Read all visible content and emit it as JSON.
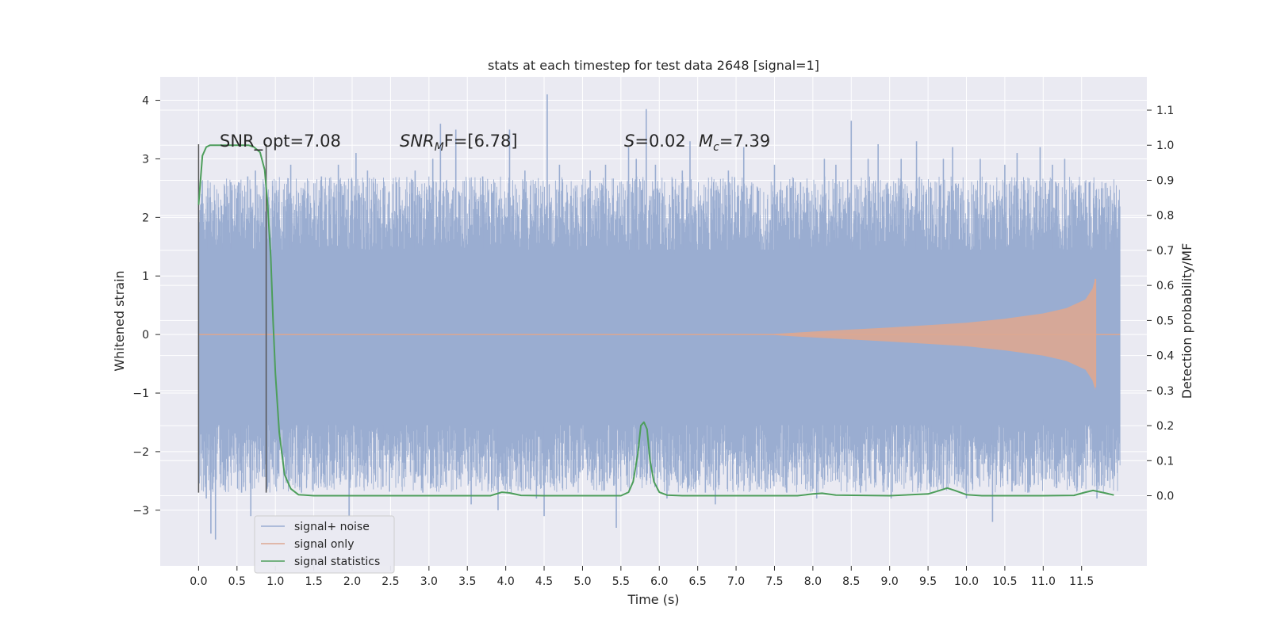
{
  "chart_data": {
    "type": "line",
    "title": "stats at each timestep for test data 2648 [signal=1]",
    "xlabel": "Time (s)",
    "ylabel_left": "Whitened strain",
    "ylabel_right": "Detection probability/MF",
    "xlim": [
      -0.5,
      12.35
    ],
    "ylim_left": [
      -3.95,
      4.4
    ],
    "ylim_right": [
      -0.2,
      1.195
    ],
    "x_ticks": [
      0.0,
      0.5,
      1.0,
      1.5,
      2.0,
      2.5,
      3.0,
      3.5,
      4.0,
      4.5,
      5.0,
      5.5,
      6.0,
      6.5,
      7.0,
      7.5,
      8.0,
      8.5,
      9.0,
      9.5,
      10.0,
      10.5,
      11.0,
      11.5
    ],
    "x_tick_labels": [
      "0.0",
      "0.5",
      "1.0",
      "1.5",
      "2.0",
      "2.5",
      "3.0",
      "3.5",
      "4.0",
      "4.5",
      "5.0",
      "5.5",
      "6.0",
      "6.5",
      "7.0",
      "7.5",
      "8.0",
      "8.5",
      "9.0",
      "9.5",
      "10.0",
      "10.5",
      "11.0",
      "11.5"
    ],
    "y_left_ticks": [
      -3,
      -2,
      -1,
      0,
      1,
      2,
      3,
      4
    ],
    "y_left_tick_labels": [
      "−3",
      "−2",
      "−1",
      "0",
      "1",
      "2",
      "3",
      "4"
    ],
    "y_right_ticks": [
      0.0,
      0.1,
      0.2,
      0.3,
      0.4,
      0.5,
      0.6,
      0.7,
      0.8,
      0.9,
      1.0,
      1.1
    ],
    "y_right_tick_labels": [
      "0.0",
      "0.1",
      "0.2",
      "0.3",
      "0.4",
      "0.5",
      "0.6",
      "0.7",
      "0.8",
      "0.9",
      "1.0",
      "1.1"
    ],
    "grid": true,
    "legend_position": "lower-left",
    "annotations": {
      "snr_opt": "SNR_opt=7.08",
      "snr_mf_prefix": "SNR",
      "snr_mf_sub": "M",
      "snr_mf_suffix": "F=[6.78]",
      "s_label": "S",
      "s_value": "=0.02",
      "mc_label": "M",
      "mc_sub": "c",
      "mc_value": "=7.39"
    },
    "series": [
      {
        "name": "signal+ noise",
        "color": "#9aadd1",
        "axis": "left",
        "kind": "noise-band",
        "x_range": [
          0.0,
          12.0
        ],
        "band": [
          -1.55,
          1.45
        ],
        "spikes": [
          {
            "x": 0.04,
            "y": 2.4
          },
          {
            "x": 0.1,
            "y": -2.8
          },
          {
            "x": 0.12,
            "y": 2.5
          },
          {
            "x": 0.16,
            "y": -3.4
          },
          {
            "x": 0.22,
            "y": -3.5
          },
          {
            "x": 0.3,
            "y": 2.2
          },
          {
            "x": 0.42,
            "y": 2.6
          },
          {
            "x": 0.52,
            "y": 2.6
          },
          {
            "x": 0.56,
            "y": -2.7
          },
          {
            "x": 0.64,
            "y": 2.7
          },
          {
            "x": 0.68,
            "y": -3.1
          },
          {
            "x": 0.74,
            "y": 2.8
          },
          {
            "x": 0.9,
            "y": -2.6
          },
          {
            "x": 1.2,
            "y": 2.9
          },
          {
            "x": 1.34,
            "y": -2.7
          },
          {
            "x": 1.6,
            "y": 2.7
          },
          {
            "x": 1.82,
            "y": 2.9
          },
          {
            "x": 1.96,
            "y": -3.1
          },
          {
            "x": 2.05,
            "y": 3.1
          },
          {
            "x": 2.2,
            "y": 2.8
          },
          {
            "x": 2.4,
            "y": -2.6
          },
          {
            "x": 2.58,
            "y": 2.6
          },
          {
            "x": 2.82,
            "y": 2.8
          },
          {
            "x": 2.92,
            "y": -2.7
          },
          {
            "x": 3.05,
            "y": 3.0
          },
          {
            "x": 3.15,
            "y": 3.6
          },
          {
            "x": 3.35,
            "y": 3.5
          },
          {
            "x": 3.55,
            "y": -2.9
          },
          {
            "x": 3.7,
            "y": 2.7
          },
          {
            "x": 3.9,
            "y": -3.0
          },
          {
            "x": 4.05,
            "y": 3.5
          },
          {
            "x": 4.25,
            "y": 2.8
          },
          {
            "x": 4.4,
            "y": -2.8
          },
          {
            "x": 4.5,
            "y": -3.1
          },
          {
            "x": 4.54,
            "y": 4.1
          },
          {
            "x": 4.7,
            "y": 2.9
          },
          {
            "x": 4.88,
            "y": -2.6
          },
          {
            "x": 5.1,
            "y": 2.8
          },
          {
            "x": 5.3,
            "y": 2.9
          },
          {
            "x": 5.44,
            "y": -3.3
          },
          {
            "x": 5.6,
            "y": 3.2
          },
          {
            "x": 5.7,
            "y": 3.0
          },
          {
            "x": 5.83,
            "y": 3.85
          },
          {
            "x": 5.95,
            "y": 2.9
          },
          {
            "x": 6.1,
            "y": -2.8
          },
          {
            "x": 6.3,
            "y": 2.8
          },
          {
            "x": 6.4,
            "y": 3.3
          },
          {
            "x": 6.6,
            "y": -2.7
          },
          {
            "x": 6.73,
            "y": -2.9
          },
          {
            "x": 6.9,
            "y": 2.8
          },
          {
            "x": 7.1,
            "y": 3.2
          },
          {
            "x": 7.3,
            "y": -2.6
          },
          {
            "x": 7.5,
            "y": 2.9
          },
          {
            "x": 7.66,
            "y": -2.7
          },
          {
            "x": 7.84,
            "y": 2.6
          },
          {
            "x": 8.05,
            "y": -2.8
          },
          {
            "x": 8.15,
            "y": 3.0
          },
          {
            "x": 8.3,
            "y": 2.9
          },
          {
            "x": 8.5,
            "y": 3.65
          },
          {
            "x": 8.62,
            "y": -2.7
          },
          {
            "x": 8.72,
            "y": 3.0
          },
          {
            "x": 8.85,
            "y": 3.25
          },
          {
            "x": 9.02,
            "y": -2.8
          },
          {
            "x": 9.15,
            "y": 3.0
          },
          {
            "x": 9.35,
            "y": 3.3
          },
          {
            "x": 9.54,
            "y": -2.6
          },
          {
            "x": 9.7,
            "y": 3.0
          },
          {
            "x": 9.82,
            "y": 3.2
          },
          {
            "x": 10.0,
            "y": -2.8
          },
          {
            "x": 10.18,
            "y": 3.0
          },
          {
            "x": 10.34,
            "y": -3.2
          },
          {
            "x": 10.5,
            "y": 2.9
          },
          {
            "x": 10.66,
            "y": 3.1
          },
          {
            "x": 10.8,
            "y": -2.7
          },
          {
            "x": 10.96,
            "y": 3.2
          },
          {
            "x": 11.12,
            "y": 2.9
          },
          {
            "x": 11.28,
            "y": 3.0
          },
          {
            "x": 11.44,
            "y": -2.6
          },
          {
            "x": 11.6,
            "y": 2.6
          },
          {
            "x": 11.7,
            "y": -2.8
          },
          {
            "x": 11.76,
            "y": 2.5
          },
          {
            "x": 11.84,
            "y": -2.5
          },
          {
            "x": 11.92,
            "y": 2.1
          },
          {
            "x": 11.96,
            "y": -1.8
          }
        ]
      },
      {
        "name": "signal only",
        "color": "#dda791",
        "axis": "left",
        "kind": "chirp",
        "x_range": [
          0.0,
          12.0
        ],
        "envelope": {
          "x": [
            7.5,
            8.0,
            9.0,
            10.0,
            10.5,
            11.0,
            11.3,
            11.55,
            11.64,
            11.68
          ],
          "amp": [
            0.01,
            0.05,
            0.12,
            0.2,
            0.27,
            0.36,
            0.45,
            0.6,
            0.78,
            0.95
          ]
        },
        "chirp_end": 11.68
      },
      {
        "name": "signal statistics",
        "color": "#4d9e5b",
        "axis": "right",
        "kind": "line",
        "x": [
          0.0,
          0.05,
          0.1,
          0.15,
          0.25,
          0.35,
          0.5,
          0.65,
          0.72,
          0.8,
          0.86,
          0.9,
          0.94,
          0.97,
          1.0,
          1.05,
          1.12,
          1.2,
          1.3,
          1.5,
          2.0,
          3.0,
          3.8,
          3.95,
          4.05,
          4.2,
          4.5,
          5.0,
          5.5,
          5.6,
          5.66,
          5.72,
          5.76,
          5.8,
          5.84,
          5.88,
          5.93,
          6.0,
          6.1,
          6.3,
          7.0,
          7.8,
          8.0,
          8.12,
          8.3,
          9.0,
          9.5,
          9.65,
          9.75,
          9.85,
          10.0,
          10.2,
          11.0,
          11.4,
          11.55,
          11.65,
          11.8,
          11.92
        ],
        "y": [
          0.83,
          0.97,
          0.995,
          1.0,
          1.0,
          1.0,
          1.0,
          1.0,
          0.995,
          0.98,
          0.93,
          0.83,
          0.68,
          0.5,
          0.35,
          0.18,
          0.06,
          0.02,
          0.003,
          0.0,
          0.0,
          0.0,
          0.0,
          0.01,
          0.008,
          0.001,
          0.0,
          0.0,
          0.0,
          0.01,
          0.04,
          0.12,
          0.2,
          0.21,
          0.19,
          0.1,
          0.04,
          0.01,
          0.002,
          0.0,
          0.0,
          0.0,
          0.005,
          0.007,
          0.002,
          0.0,
          0.005,
          0.015,
          0.022,
          0.015,
          0.003,
          0.0,
          0.0,
          0.001,
          0.01,
          0.015,
          0.008,
          0.002
        ]
      }
    ],
    "vertical_markers": [
      {
        "x": 0.0,
        "ymin": -2.7,
        "ymax": 3.25,
        "color": "#555555"
      },
      {
        "x": 0.88,
        "ymin": -2.7,
        "ymax": 3.25,
        "color": "#555555"
      }
    ]
  }
}
